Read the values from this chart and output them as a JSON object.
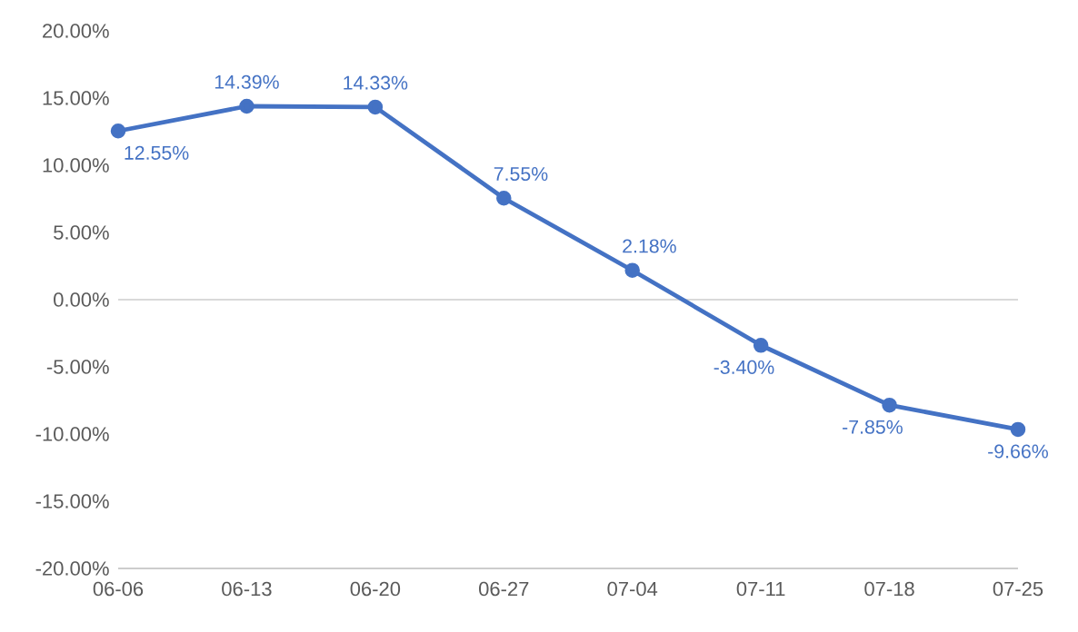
{
  "chart_data": {
    "type": "line",
    "categories": [
      "06-06",
      "06-13",
      "06-20",
      "06-27",
      "07-04",
      "07-11",
      "07-18",
      "07-25"
    ],
    "series": [
      {
        "color": "#4472c4",
        "values": [
          12.55,
          14.39,
          14.33,
          7.55,
          2.18,
          -3.4,
          -7.85,
          -9.66
        ],
        "value_labels": [
          "12.55%",
          "14.39%",
          "14.33%",
          "7.55%",
          "2.18%",
          "-3.40%",
          "-7.85%",
          "-9.66%"
        ]
      }
    ],
    "ylim": [
      -20,
      20
    ],
    "yticks": [
      {
        "value": -20,
        "label": "-20.00%"
      },
      {
        "value": -15,
        "label": "-15.00%"
      },
      {
        "value": -10,
        "label": "-10.00%"
      },
      {
        "value": -5,
        "label": "-5.00%"
      },
      {
        "value": 0,
        "label": "0.00%"
      },
      {
        "value": 5,
        "label": "5.00%"
      },
      {
        "value": 10,
        "label": "10.00%"
      },
      {
        "value": 15,
        "label": "15.00%"
      },
      {
        "value": 20,
        "label": "20.00%"
      }
    ],
    "ref_lines": [
      {
        "axis": "y",
        "value": 0,
        "color": "#d9d9d9"
      }
    ],
    "marker": "circle",
    "line_style": "solid"
  }
}
